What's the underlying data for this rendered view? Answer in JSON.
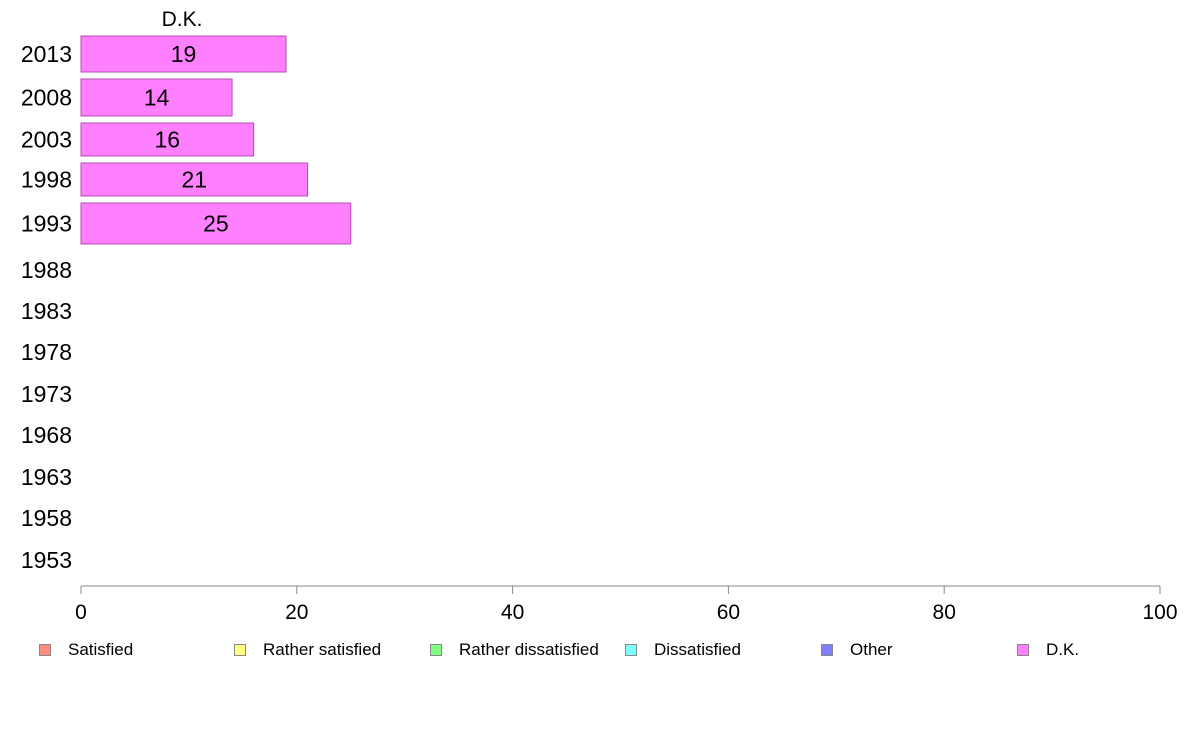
{
  "chart_data": {
    "type": "bar",
    "orientation": "horizontal",
    "stacked": true,
    "categories": [
      "2013",
      "2008",
      "2003",
      "1998",
      "1993",
      "1988",
      "1983",
      "1978",
      "1973",
      "1968",
      "1963",
      "1958",
      "1953"
    ],
    "series": [
      {
        "name": "Satisfied",
        "color": "#ff8a80",
        "values": [
          null,
          null,
          null,
          null,
          null,
          null,
          null,
          null,
          null,
          null,
          null,
          null,
          null
        ]
      },
      {
        "name": "Rather satisfied",
        "color": "#ffff80",
        "values": [
          null,
          null,
          null,
          null,
          null,
          null,
          null,
          null,
          null,
          null,
          null,
          null,
          null
        ]
      },
      {
        "name": "Rather dissatisfied",
        "color": "#80ff80",
        "values": [
          null,
          null,
          null,
          null,
          null,
          null,
          null,
          null,
          null,
          null,
          null,
          null,
          null
        ]
      },
      {
        "name": "Dissatisfied",
        "color": "#80ffff",
        "values": [
          null,
          null,
          null,
          null,
          null,
          null,
          null,
          null,
          null,
          null,
          null,
          null,
          null
        ]
      },
      {
        "name": "Other",
        "color": "#8080ff",
        "values": [
          null,
          null,
          null,
          null,
          null,
          null,
          null,
          null,
          null,
          null,
          null,
          null,
          null
        ]
      },
      {
        "name": "D.K.",
        "color": "#ff80ff",
        "values": [
          19,
          14,
          16,
          21,
          25,
          null,
          null,
          null,
          null,
          null,
          null,
          null,
          null
        ]
      }
    ],
    "column_header": "D.K.",
    "xlim": [
      0,
      100
    ],
    "xticks": [
      0,
      20,
      40,
      60,
      80,
      100
    ],
    "grid": false,
    "legend_position": "bottom"
  }
}
